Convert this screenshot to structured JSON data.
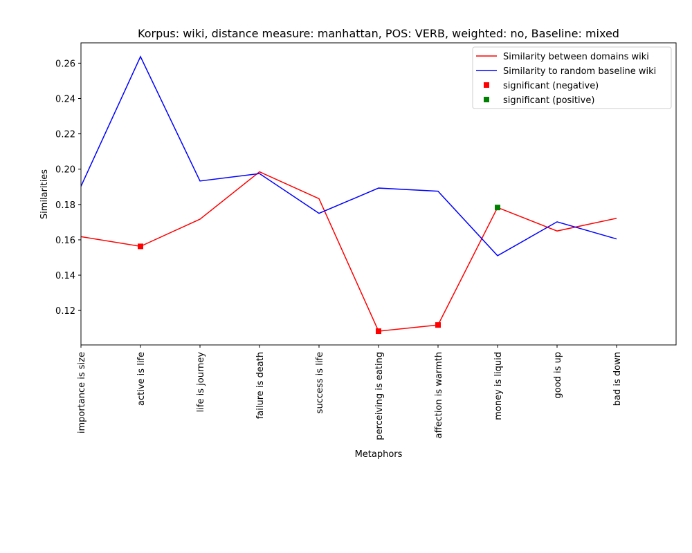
{
  "chart_data": {
    "type": "line",
    "title": "Korpus: wiki, distance measure: manhattan, POS: VERB, weighted: no, Baseline: mixed",
    "xlabel": "Metaphors",
    "ylabel": "Similarities",
    "categories": [
      "importance is size",
      "active is life",
      "life is journey",
      "failure is death",
      "success is life",
      "perceiving is eating",
      "affection is warmth",
      "money is liquid",
      "good is up",
      "bad is down"
    ],
    "ylim": [
      0.1005,
      0.2715
    ],
    "yticks": [
      0.12,
      0.14,
      0.16,
      0.18,
      0.2,
      0.22,
      0.24,
      0.26
    ],
    "ytick_labels": [
      "0.12",
      "0.14",
      "0.16",
      "0.18",
      "0.20",
      "0.22",
      "0.24",
      "0.26"
    ],
    "xlim": [
      0,
      10
    ],
    "grid": false,
    "legend_position": "top-right",
    "series": [
      {
        "name": "Similarity between domains wiki",
        "color": "#ff0000",
        "values": [
          0.1618,
          0.1563,
          0.1717,
          0.1985,
          0.1833,
          0.1083,
          0.1118,
          0.1783,
          0.165,
          0.1722
        ]
      },
      {
        "name": "Similarity to random baseline wiki",
        "color": "#0000ff",
        "values": [
          0.1903,
          0.2637,
          0.1933,
          0.1975,
          0.175,
          0.1893,
          0.1875,
          0.151,
          0.1702,
          0.1605
        ]
      }
    ],
    "markers": [
      {
        "name": "significant (negative)",
        "color": "#ff0000",
        "shape": "square",
        "points": [
          {
            "x": "active is life",
            "y": 0.1563
          },
          {
            "x": "perceiving is eating",
            "y": 0.1083
          },
          {
            "x": "affection is warmth",
            "y": 0.1118
          }
        ]
      },
      {
        "name": "significant (positive)",
        "color": "#008000",
        "shape": "square",
        "points": [
          {
            "x": "money is liquid",
            "y": 0.1783
          }
        ]
      }
    ]
  }
}
